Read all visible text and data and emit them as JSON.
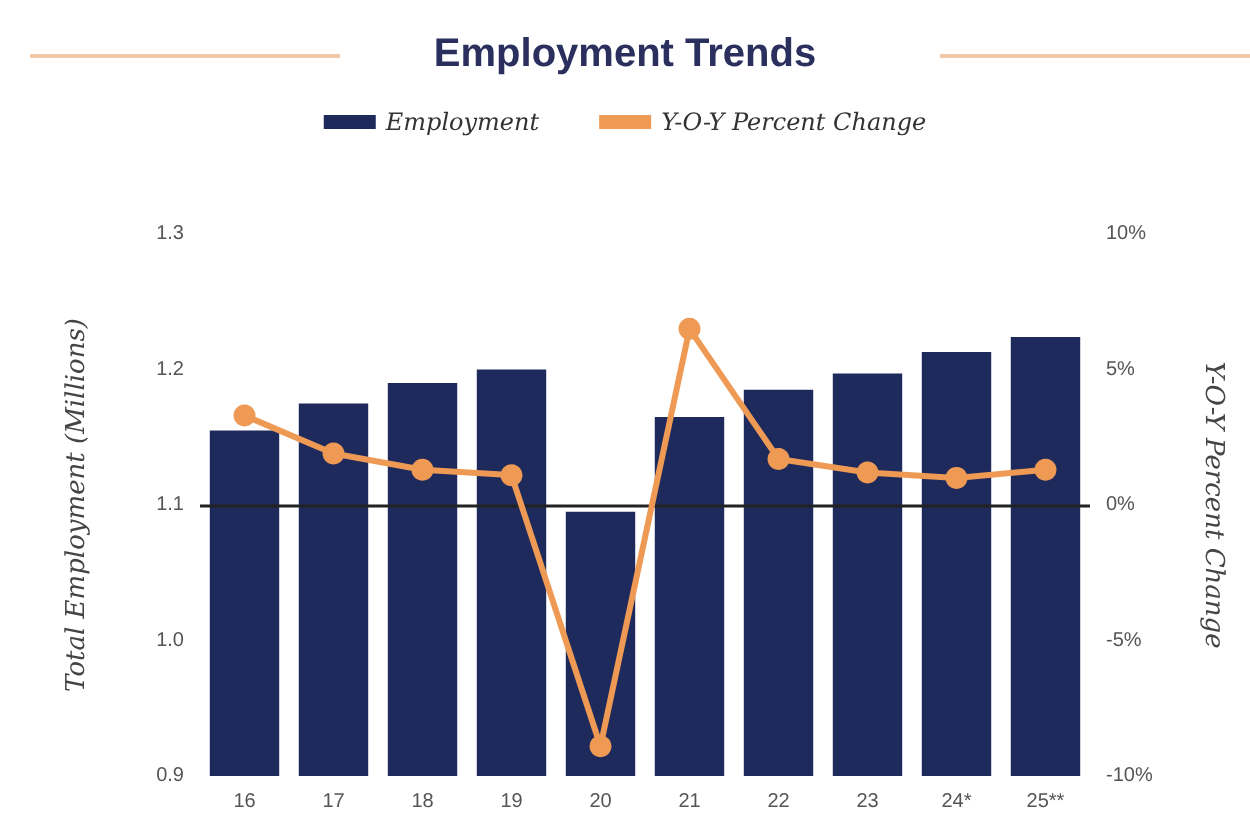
{
  "chart_data": {
    "type": "bar",
    "title": "Employment Trends",
    "ylabel": "Total Employment (Millions)",
    "y2label": "Y-O-Y Percent Change",
    "categories": [
      "16",
      "17",
      "18",
      "19",
      "20",
      "21",
      "22",
      "23",
      "24*",
      "25**"
    ],
    "series": [
      {
        "name": "Employment",
        "color": "#1f2a5c",
        "values": [
          1.155,
          1.175,
          1.19,
          1.2,
          1.095,
          1.165,
          1.185,
          1.197,
          1.213,
          1.224
        ]
      },
      {
        "name": "Y-O-Y Percent Change",
        "type": "line",
        "axis": "y2",
        "color": "#ee9a55",
        "values": [
          3.3,
          1.9,
          1.3,
          1.1,
          -8.9,
          6.5,
          1.7,
          1.2,
          1.0,
          1.3
        ]
      }
    ],
    "ylim": [
      0.9,
      1.3
    ],
    "yticks": [
      0.9,
      {
        "value": 1.0,
        "label": "1.0"
      },
      1.1,
      1.2,
      1.3
    ],
    "y2lim": [
      -10,
      10
    ],
    "y2ticks": [
      {
        "value": -10,
        "label": "-10%"
      },
      {
        "value": -5,
        "label": "-5%"
      },
      {
        "value": 0,
        "label": "0%"
      },
      {
        "value": 5,
        "label": "5%"
      },
      {
        "value": 10,
        "label": "10%"
      }
    ],
    "ref_lines": [
      {
        "axis": "y",
        "value": 1.1,
        "color": "#222222"
      }
    ],
    "grid": false,
    "legend": "top",
    "marker": "circle",
    "line_style": "solid"
  }
}
